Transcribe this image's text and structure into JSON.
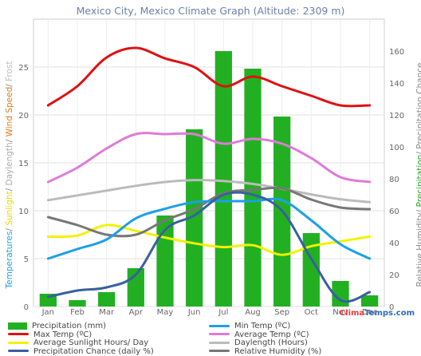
{
  "title": "Mexico City, Mexico Climate Graph (Altitude: 2309 m)",
  "brand": {
    "prefix": "Clima",
    "suffix": "Temps.com"
  },
  "left_axis_label_parts": [
    {
      "text": "Temperatures",
      "color": "#1ba0e8"
    },
    {
      "text": "/ ",
      "color": "#888888"
    },
    {
      "text": "Sunlight",
      "color": "#e6d900"
    },
    {
      "text": "/ ",
      "color": "#888888"
    },
    {
      "text": "Daylength",
      "color": "#aaaaaa"
    },
    {
      "text": "/ ",
      "color": "#888888"
    },
    {
      "text": "Wind Speed",
      "color": "#e07a1a"
    },
    {
      "text": "/ ",
      "color": "#888888"
    },
    {
      "text": "Frost",
      "color": "#bbbbbb"
    }
  ],
  "right_axis_label_parts": [
    {
      "text": "Relative Humidity",
      "color": "#888888"
    },
    {
      "text": "/ ",
      "color": "#888888"
    },
    {
      "text": "Precipitation",
      "color": "#22aa22"
    },
    {
      "text": "/ ",
      "color": "#888888"
    },
    {
      "text": "Precipitation Chance",
      "color": "#888888"
    }
  ],
  "legend": [
    {
      "label": "Precipitation (mm)",
      "color": "#22b022",
      "kind": "bar"
    },
    {
      "label": "Min Temp (ºC)",
      "color": "#1ba0e8",
      "kind": "line"
    },
    {
      "label": "Max Temp (ºC)",
      "color": "#e01010",
      "kind": "line"
    },
    {
      "label": "Average Temp (ºC)",
      "color": "#e07ad8",
      "kind": "line"
    },
    {
      "label": "Average Sunlight Hours/ Day",
      "color": "#f2f200",
      "kind": "line"
    },
    {
      "label": "Daylength (Hours)",
      "color": "#bbbbbb",
      "kind": "line"
    },
    {
      "label": "Precipitation Chance (daily %)",
      "color": "#3a5fa0",
      "kind": "line"
    },
    {
      "label": "Relative Humidity (%)",
      "color": "#777777",
      "kind": "line"
    }
  ],
  "chart_data": {
    "type": "bar",
    "categories": [
      "Jan",
      "Feb",
      "Mar",
      "Apr",
      "May",
      "Jun",
      "Jul",
      "Aug",
      "Sep",
      "Oct",
      "Nov",
      "Dec"
    ],
    "left_axis": {
      "ylim": [
        0,
        30
      ],
      "ticks": [
        0,
        5,
        10,
        15,
        20,
        25
      ]
    },
    "right_axis": {
      "ylim": [
        0,
        180
      ],
      "ticks": [
        0,
        20,
        40,
        60,
        80,
        100,
        120,
        140,
        160
      ]
    },
    "grid": true,
    "legend_position": "bottom",
    "series": [
      {
        "name": "Precipitation (mm)",
        "axis": "right",
        "type": "bar",
        "color": "#22b022",
        "values": [
          8,
          4,
          9,
          24,
          57,
          111,
          160,
          149,
          119,
          46,
          16,
          7
        ]
      },
      {
        "name": "Min Temp (ºC)",
        "axis": "left",
        "type": "line",
        "color": "#1ba0e8",
        "values": [
          5,
          6,
          7,
          9.2,
          10.2,
          10.9,
          11,
          11,
          11.1,
          9,
          6.5,
          5
        ]
      },
      {
        "name": "Max Temp (ºC)",
        "axis": "left",
        "type": "line",
        "color": "#e01010",
        "values": [
          21,
          23,
          26,
          27,
          25.9,
          25,
          23,
          24,
          23,
          22,
          21,
          21
        ]
      },
      {
        "name": "Average Temp (ºC)",
        "axis": "left",
        "type": "line",
        "color": "#e07ad8",
        "values": [
          13,
          14.5,
          16.5,
          18,
          18,
          18,
          17,
          17.5,
          17,
          15.5,
          13.5,
          13
        ]
      },
      {
        "name": "Average Sunlight Hours/ Day",
        "axis": "left",
        "type": "line",
        "color": "#f2f200",
        "values": [
          7.3,
          7.4,
          8.5,
          7.9,
          7.2,
          6.6,
          6.2,
          6.4,
          5.4,
          6.3,
          6.8,
          7.3
        ]
      },
      {
        "name": "Daylength (Hours)",
        "axis": "left",
        "type": "line",
        "color": "#bbbbbb",
        "values": [
          11.1,
          11.6,
          12.1,
          12.6,
          13,
          13.2,
          13.1,
          12.8,
          12.3,
          11.7,
          11.2,
          10.9
        ]
      },
      {
        "name": "Precipitation Chance (daily %)",
        "axis": "right",
        "type": "line",
        "color": "#3a5fa0",
        "values": [
          6,
          10,
          12,
          20,
          48,
          57,
          70,
          70,
          60,
          30,
          4,
          9
        ]
      },
      {
        "name": "Relative Humidity (%)",
        "axis": "right",
        "type": "line",
        "color": "#777777",
        "values": [
          56,
          51,
          45,
          45,
          54,
          61,
          71,
          73,
          74,
          67,
          62,
          61
        ]
      }
    ]
  }
}
